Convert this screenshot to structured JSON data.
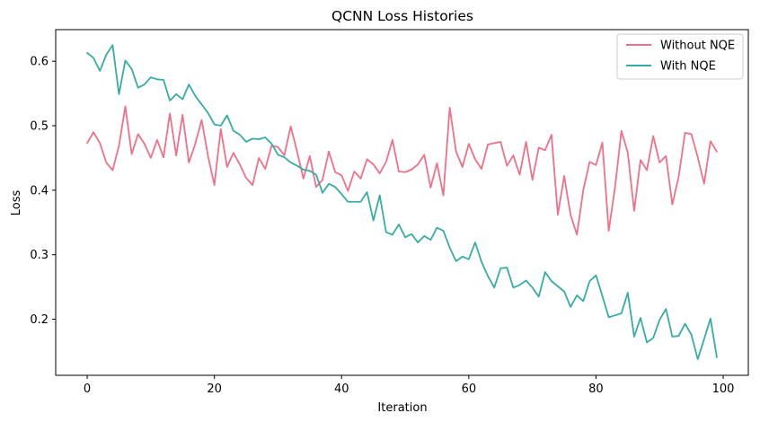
{
  "chart_data": {
    "type": "line",
    "title": "QCNN Loss Histories",
    "xlabel": "Iteration",
    "ylabel": "Loss",
    "xlim": [
      -4.95,
      103.95
    ],
    "ylim": [
      0.113,
      0.649
    ],
    "x_ticks": [
      0,
      20,
      40,
      60,
      80,
      100
    ],
    "y_ticks": [
      0.2,
      0.3,
      0.4,
      0.5,
      0.6
    ],
    "x_tick_labels": [
      "0",
      "20",
      "40",
      "60",
      "80",
      "100"
    ],
    "y_tick_labels": [
      "0.2",
      "0.3",
      "0.4",
      "0.5",
      "0.6"
    ],
    "grid": false,
    "legend_position": "top-right",
    "x": [
      0,
      1,
      2,
      3,
      4,
      5,
      6,
      7,
      8,
      9,
      10,
      11,
      12,
      13,
      14,
      15,
      16,
      17,
      18,
      19,
      20,
      21,
      22,
      23,
      24,
      25,
      26,
      27,
      28,
      29,
      30,
      31,
      32,
      33,
      34,
      35,
      36,
      37,
      38,
      39,
      40,
      41,
      42,
      43,
      44,
      45,
      46,
      47,
      48,
      49,
      50,
      51,
      52,
      53,
      54,
      55,
      56,
      57,
      58,
      59,
      60,
      61,
      62,
      63,
      64,
      65,
      66,
      67,
      68,
      69,
      70,
      71,
      72,
      73,
      74,
      75,
      76,
      77,
      78,
      79,
      80,
      81,
      82,
      83,
      84,
      85,
      86,
      87,
      88,
      89,
      90,
      91,
      92,
      93,
      94,
      95,
      96,
      97,
      98,
      99
    ],
    "series": [
      {
        "name": "Without NQE",
        "color": "#f0708a",
        "values": [
          0.473,
          0.49,
          0.473,
          0.443,
          0.431,
          0.469,
          0.53,
          0.456,
          0.487,
          0.472,
          0.45,
          0.478,
          0.451,
          0.519,
          0.454,
          0.517,
          0.443,
          0.472,
          0.509,
          0.453,
          0.408,
          0.495,
          0.436,
          0.458,
          0.44,
          0.419,
          0.408,
          0.45,
          0.433,
          0.469,
          0.467,
          0.454,
          0.499,
          0.46,
          0.418,
          0.453,
          0.405,
          0.416,
          0.46,
          0.428,
          0.423,
          0.399,
          0.429,
          0.418,
          0.448,
          0.44,
          0.426,
          0.444,
          0.478,
          0.429,
          0.428,
          0.432,
          0.44,
          0.455,
          0.404,
          0.442,
          0.392,
          0.528,
          0.46,
          0.436,
          0.472,
          0.448,
          0.433,
          0.471,
          0.473,
          0.475,
          0.438,
          0.454,
          0.424,
          0.475,
          0.416,
          0.466,
          0.462,
          0.486,
          0.362,
          0.422,
          0.362,
          0.331,
          0.4,
          0.444,
          0.439,
          0.474,
          0.337,
          0.405,
          0.492,
          0.458,
          0.368,
          0.447,
          0.431,
          0.484,
          0.443,
          0.453,
          0.378,
          0.421,
          0.489,
          0.487,
          0.451,
          0.41,
          0.476,
          0.46
        ]
      },
      {
        "name": "With NQE",
        "color": "#36ada4",
        "values": [
          0.613,
          0.605,
          0.585,
          0.61,
          0.625,
          0.549,
          0.601,
          0.588,
          0.559,
          0.564,
          0.575,
          0.572,
          0.571,
          0.539,
          0.549,
          0.541,
          0.564,
          0.546,
          0.533,
          0.52,
          0.502,
          0.5,
          0.516,
          0.492,
          0.486,
          0.475,
          0.48,
          0.479,
          0.482,
          0.472,
          0.455,
          0.451,
          0.443,
          0.438,
          0.432,
          0.43,
          0.424,
          0.396,
          0.41,
          0.405,
          0.394,
          0.382,
          0.382,
          0.382,
          0.397,
          0.353,
          0.392,
          0.335,
          0.331,
          0.347,
          0.327,
          0.332,
          0.319,
          0.329,
          0.323,
          0.342,
          0.337,
          0.311,
          0.29,
          0.297,
          0.293,
          0.319,
          0.289,
          0.267,
          0.249,
          0.279,
          0.28,
          0.249,
          0.253,
          0.26,
          0.249,
          0.235,
          0.273,
          0.259,
          0.251,
          0.243,
          0.219,
          0.237,
          0.228,
          0.259,
          0.268,
          0.236,
          0.203,
          0.206,
          0.209,
          0.241,
          0.173,
          0.202,
          0.164,
          0.171,
          0.199,
          0.216,
          0.173,
          0.174,
          0.193,
          0.176,
          0.138,
          0.169,
          0.201,
          0.141
        ]
      }
    ]
  }
}
